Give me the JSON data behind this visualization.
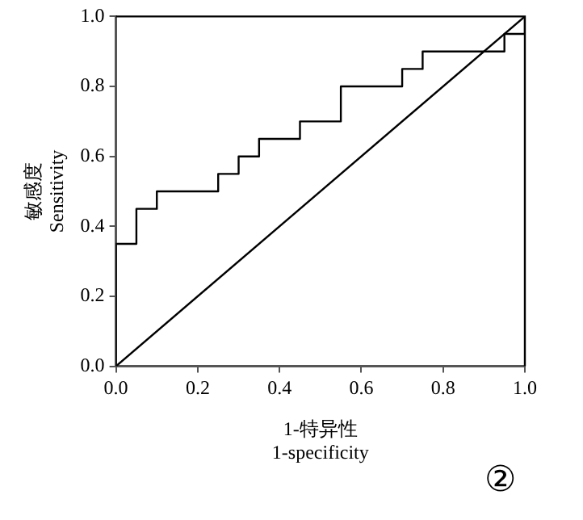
{
  "chart_data": {
    "type": "step",
    "xlabel": "1-特异性\n1-specificity",
    "ylabel": "敏感度\nSensitivity",
    "xlim": [
      0,
      1
    ],
    "ylim": [
      0,
      1
    ],
    "xticks": [
      {
        "value": 0,
        "label": "0.0"
      },
      {
        "value": 0.2,
        "label": "0.2"
      },
      {
        "value": 0.4,
        "label": "0.4"
      },
      {
        "value": 0.6,
        "label": "0.6"
      },
      {
        "value": 0.8,
        "label": "0.8"
      },
      {
        "value": 1,
        "label": "1.0"
      }
    ],
    "yticks": [
      {
        "value": 0,
        "label": "0.0"
      },
      {
        "value": 0.2,
        "label": "0.2"
      },
      {
        "value": 0.4,
        "label": "0.4"
      },
      {
        "value": 0.6,
        "label": "0.6"
      },
      {
        "value": 0.8,
        "label": "0.8"
      },
      {
        "value": 1,
        "label": "1.0"
      }
    ],
    "series": [
      {
        "color": "#000000",
        "x": [
          0,
          0,
          0.05,
          0.1,
          0.25,
          0.3,
          0.35,
          0.45,
          0.55,
          0.7,
          0.75,
          0.95,
          1
        ],
        "values": [
          0,
          0.35,
          0.45,
          0.5,
          0.55,
          0.6,
          0.65,
          0.7,
          0.8,
          0.85,
          0.9,
          0.95,
          1
        ]
      },
      {
        "type": "line",
        "color": "#000000",
        "x": [
          0,
          1
        ],
        "values": [
          0,
          1
        ]
      }
    ],
    "grid": false,
    "legend": false,
    "marker": "none",
    "annotations": [
      "②"
    ]
  }
}
